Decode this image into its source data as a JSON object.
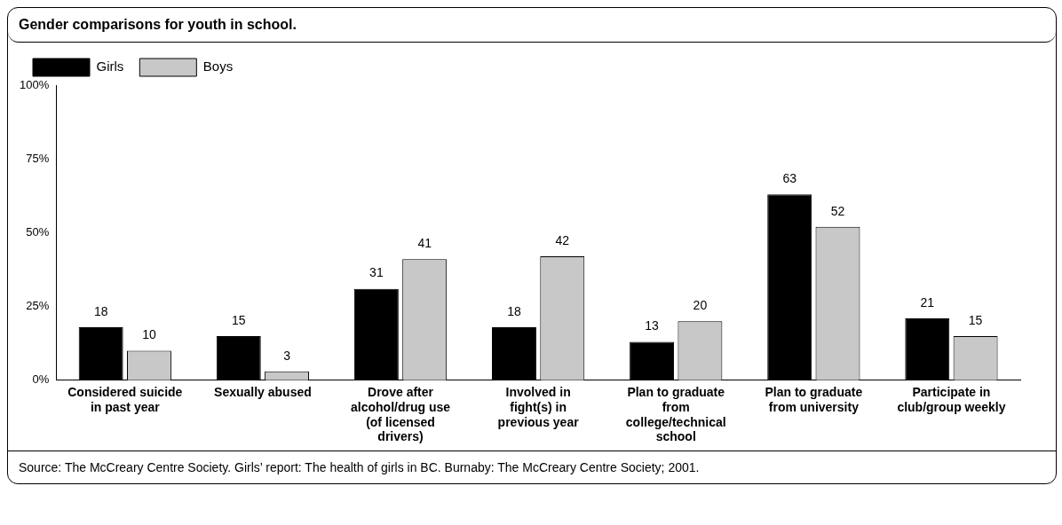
{
  "chart_data": {
    "type": "bar",
    "title": "Gender comparisons for youth in school.",
    "categories": [
      "Considered suicide in past year",
      "Sexually abused",
      "Drove after alcohol/drug use (of licensed drivers)",
      "Involved in fight(s) in previous year",
      "Plan to graduate from college/technical school",
      "Plan to graduate from university",
      "Participate in club/group weekly"
    ],
    "series": [
      {
        "name": "Girls",
        "color": "#000000",
        "values": [
          18,
          15,
          31,
          18,
          13,
          63,
          21
        ]
      },
      {
        "name": "Boys",
        "color": "#c8c8c8",
        "values": [
          10,
          3,
          41,
          42,
          20,
          52,
          15
        ]
      }
    ],
    "ylim": [
      0,
      100
    ],
    "yticks": [
      {
        "value": 0,
        "label": "0%"
      },
      {
        "value": 25,
        "label": "25%"
      },
      {
        "value": 50,
        "label": "50%"
      },
      {
        "value": 75,
        "label": "75%"
      },
      {
        "value": 100,
        "label": "100%"
      }
    ],
    "data_labels": true,
    "grid": false,
    "legend": "top left",
    "annotations": [
      "Source: The McCreary Centre Society. Girls’ report: The health of girls in BC. Burnaby: The McCreary Centre Society; 2001."
    ]
  }
}
